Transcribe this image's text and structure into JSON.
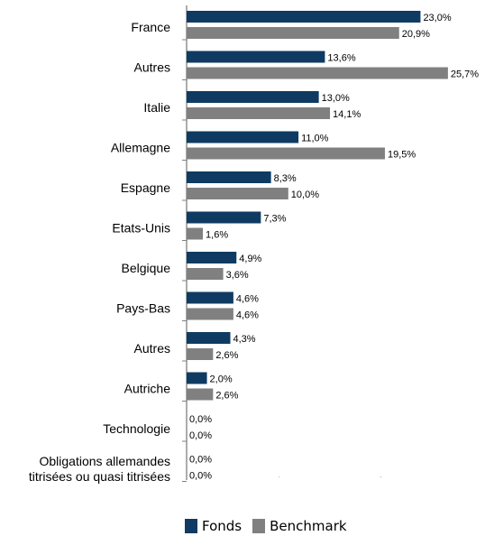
{
  "chart_data": {
    "type": "bar",
    "orientation": "horizontal",
    "categories": [
      "France",
      "Autres",
      "Italie",
      "Allemagne",
      "Espagne",
      "Etats-Unis",
      "Belgique",
      "Pays-Bas",
      "Autres",
      "Autriche",
      "Technologie",
      "Obligations allemandes\ntitrisées ou quasi titrisées"
    ],
    "series": [
      {
        "name": "Fonds",
        "color": "#0f3b62",
        "values": [
          23.0,
          13.6,
          13.0,
          11.0,
          8.3,
          7.3,
          4.9,
          4.6,
          4.3,
          2.0,
          0.0,
          0.0
        ],
        "labels": [
          "23,0%",
          "13,6%",
          "13,0%",
          "11,0%",
          "8,3%",
          "7,3%",
          "4,9%",
          "4,6%",
          "4,3%",
          "2,0%",
          "0,0%",
          "0,0%"
        ]
      },
      {
        "name": "Benchmark",
        "color": "#808080",
        "values": [
          20.9,
          25.7,
          14.1,
          19.5,
          10.0,
          1.6,
          3.6,
          4.6,
          2.6,
          2.6,
          0.0,
          0.0
        ],
        "labels": [
          "20,9%",
          "25,7%",
          "14,1%",
          "19,5%",
          "10,0%",
          "1,6%",
          "3,6%",
          "4,6%",
          "2,6%",
          "2,6%",
          "0,0%",
          "0,0%"
        ]
      }
    ],
    "xlim": [
      0,
      30
    ],
    "grid": false,
    "legend_position": "bottom"
  }
}
